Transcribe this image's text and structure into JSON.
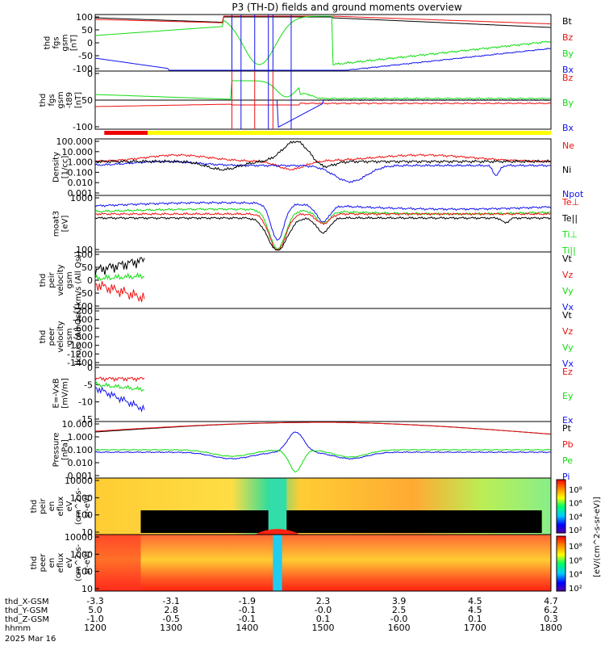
{
  "title": "P3 (TH-D) fields and ground moments overview",
  "colors": {
    "black": "#000000",
    "red": "#ee1111",
    "green": "#11dd11",
    "blue": "#1111ee",
    "status_red": "#ee0000",
    "status_yellow": "#ffff00"
  },
  "chart_data": {
    "type": "line",
    "x_label": "hhmm",
    "date_label": "2025 Mar 16",
    "time_ticks": [
      "1200",
      "1300",
      "1400",
      "1500",
      "1600",
      "1700",
      "1800"
    ],
    "ephemeris": [
      {
        "label": "thd_X-GSM",
        "values": [
          "-3.3",
          "-3.1",
          "-1.9",
          "2.3",
          "3.9",
          "4.5",
          "4.7"
        ]
      },
      {
        "label": "thd_Y-GSM",
        "values": [
          "5.0",
          "2.8",
          "-0.1",
          "-0.0",
          "2.5",
          "4.5",
          "6.2"
        ]
      },
      {
        "label": "thd_Z-GSM",
        "values": [
          "-1.0",
          "-0.5",
          "-0.1",
          "0.1",
          "-0.0",
          "0.1",
          "0.3"
        ]
      }
    ],
    "panels": [
      {
        "ylabel": [
          "thd",
          "fgs",
          "gsm",
          "[nT]"
        ],
        "ticks": [
          "100",
          "50",
          "0",
          "-50",
          "-100"
        ],
        "legend": [
          [
            "Bt",
            "black"
          ],
          [
            "Bz",
            "red"
          ],
          [
            "By",
            "green"
          ],
          [
            "Bx",
            "blue"
          ]
        ]
      },
      {
        "ylabel": [
          "thd",
          "fgs",
          "gsm",
          "-t89",
          "[nT]"
        ],
        "ticks": [
          "0",
          "-50",
          "-100"
        ],
        "legend": [
          [
            "Bz",
            "red"
          ],
          [
            "By",
            "green"
          ],
          [
            "Bx",
            "blue"
          ]
        ]
      },
      {
        "ylabel": [
          "Density",
          "[1/cc]"
        ],
        "ticks": [
          "100.000",
          "10.000",
          "1.000",
          "0.100",
          "0.010",
          "0.001"
        ],
        "legend": [
          [
            "Ne",
            "red"
          ],
          [
            "Ni",
            "black"
          ],
          [
            "Npot",
            "blue"
          ]
        ]
      },
      {
        "ylabel": [
          "moat3",
          "[eV]"
        ],
        "ticks": [
          "1000",
          "100"
        ],
        "legend": [
          [
            "Te⊥",
            "red"
          ],
          [
            "Te||",
            "black"
          ],
          [
            "Ti⊥",
            "green"
          ],
          [
            "Ti||",
            "green"
          ]
        ]
      },
      {
        "ylabel": [
          "thd",
          "peir",
          "velocity",
          "gsm",
          "[km/s (All Qs)]"
        ],
        "ticks": [
          "100",
          "50",
          "0",
          "-50",
          "-100"
        ],
        "legend": [
          [
            "Vt",
            "black"
          ],
          [
            "Vz",
            "red"
          ],
          [
            "Vy",
            "green"
          ],
          [
            "Vx",
            "blue"
          ]
        ]
      },
      {
        "ylabel": [
          "thd",
          "peer",
          "velocity",
          "gsm",
          "[km/s (All Qs)]"
        ],
        "ticks": [
          "-200",
          "-400",
          "-600",
          "-800",
          "-1000",
          "-1200",
          "-1400"
        ],
        "legend": [
          [
            "Vt",
            "black"
          ],
          [
            "Vz",
            "red"
          ],
          [
            "Vy",
            "green"
          ],
          [
            "Vx",
            "blue"
          ]
        ]
      },
      {
        "ylabel": [
          "E=-VxB",
          "[mV/m]"
        ],
        "ticks": [
          "0",
          "-5",
          "-10",
          "-15"
        ],
        "legend": [
          [
            "Ez",
            "red"
          ],
          [
            "Ey",
            "green"
          ],
          [
            "Ex",
            "blue"
          ]
        ]
      },
      {
        "ylabel": [
          "Pressure",
          "[nPa]"
        ],
        "ticks": [
          "10.000",
          "1.000",
          "0.100",
          "0.010",
          "0.001"
        ],
        "legend": [
          [
            "Pt",
            "black"
          ],
          [
            "Pb",
            "red"
          ],
          [
            "Pe",
            "green"
          ],
          [
            "Pi",
            "blue"
          ]
        ]
      },
      {
        "ylabel": [
          "thd",
          "peir",
          "en",
          "eflux",
          "eV",
          "(cm^2-s-",
          "sr-eV)"
        ],
        "ticks": [
          "10000",
          "1000",
          "100",
          "10"
        ],
        "legend": []
      },
      {
        "ylabel": [
          "thd",
          "peer",
          "en",
          "eflux",
          "eV",
          "(cm^2-s-",
          "sr-eV)"
        ],
        "ticks": [
          "10000",
          "1000",
          "100",
          "10"
        ],
        "legend": []
      }
    ],
    "colorbar": {
      "label": "[eV/(cm^2-s-sr-eV)]",
      "ion_ticks": [
        "10⁸",
        "10⁶",
        "10⁴",
        "10²"
      ],
      "electron_ticks": [
        "10⁸",
        "10⁶",
        "10⁴",
        "10²"
      ]
    }
  }
}
